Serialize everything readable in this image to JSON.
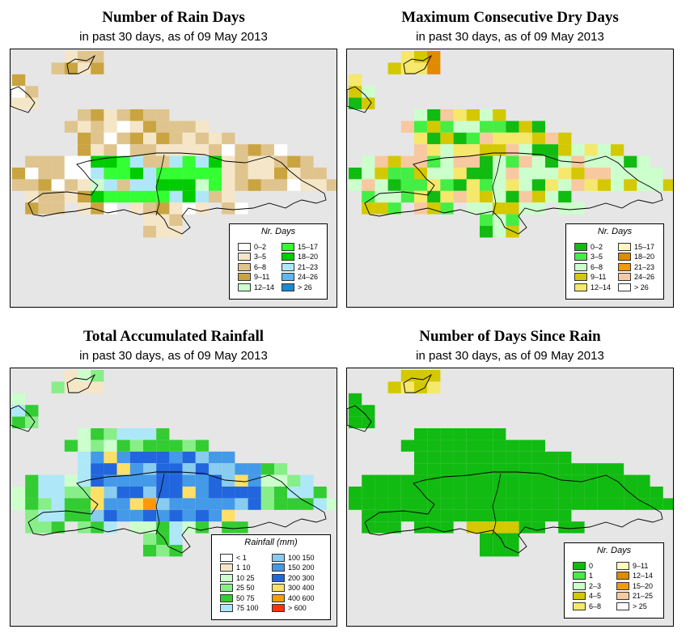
{
  "panels": [
    {
      "title": "Number of Rain Days",
      "subtitle": "in past 30 days, as of  09 May 2013",
      "legend": {
        "title": "Nr. Days",
        "items": [
          {
            "label": "0–2",
            "color": "#ffffff"
          },
          {
            "label": "3–5",
            "color": "#f5e6c8"
          },
          {
            "label": "6–8",
            "color": "#dfc48e"
          },
          {
            "label": "9–11",
            "color": "#c9a440"
          },
          {
            "label": "12–14",
            "color": "#ccffcc"
          },
          {
            "label": "15–17",
            "color": "#33ff33"
          },
          {
            "label": "18–20",
            "color": "#00cc00"
          },
          {
            "label": "21–23",
            "color": "#aee8f8"
          },
          {
            "label": "24–26",
            "color": "#5cb8f0"
          },
          {
            "label": "> 26",
            "color": "#1e88d0"
          }
        ]
      }
    },
    {
      "title": "Maximum Consecutive Dry Days",
      "subtitle": "in past 30 days, as of  09 May 2013",
      "legend": {
        "title": "Nr. Days",
        "items": [
          {
            "label": "0–2",
            "color": "#11bb11"
          },
          {
            "label": "3–5",
            "color": "#44ee44"
          },
          {
            "label": "6–8",
            "color": "#ccffcc"
          },
          {
            "label": "9–11",
            "color": "#d4c800"
          },
          {
            "label": "12–14",
            "color": "#f5e86a"
          },
          {
            "label": "15–17",
            "color": "#fff8c0"
          },
          {
            "label": "18–20",
            "color": "#e08a00"
          },
          {
            "label": "21–23",
            "color": "#f09a10"
          },
          {
            "label": "24–26",
            "color": "#f8c8a0"
          },
          {
            "label": "> 26",
            "color": "#ffffff"
          }
        ]
      }
    },
    {
      "title": "Total Accumulated Rainfall",
      "subtitle": "in past 30 days, as of  09 May 2013",
      "legend": {
        "title": "Rainfall (mm)",
        "items": [
          {
            "label": "< 1",
            "color": "#ffffff"
          },
          {
            "label": "1   10",
            "color": "#f5e6c8"
          },
          {
            "label": "10   25",
            "color": "#ccffcc"
          },
          {
            "label": "25   50",
            "color": "#88ee88"
          },
          {
            "label": "50   75",
            "color": "#33cc33"
          },
          {
            "label": "75   100",
            "color": "#aee8f8"
          },
          {
            "label": "100   150",
            "color": "#88ccf0"
          },
          {
            "label": "150   200",
            "color": "#4499e8"
          },
          {
            "label": "200   300",
            "color": "#2266dd"
          },
          {
            "label": "300   400",
            "color": "#ffe066"
          },
          {
            "label": "400   600",
            "color": "#ff9900"
          },
          {
            "label": "> 600",
            "color": "#ff3300"
          }
        ]
      }
    },
    {
      "title": "Number of Days Since Rain",
      "subtitle": "in past 30 days, as of  09 May 2013",
      "legend": {
        "title": "Nr. Days",
        "items": [
          {
            "label": "0",
            "color": "#11bb11"
          },
          {
            "label": "1",
            "color": "#44ee44"
          },
          {
            "label": "2–3",
            "color": "#ccffcc"
          },
          {
            "label": "4–5",
            "color": "#d4c800"
          },
          {
            "label": "6–8",
            "color": "#f5e86a"
          },
          {
            "label": "9–11",
            "color": "#fff8c0"
          },
          {
            "label": "12–14",
            "color": "#e08a00"
          },
          {
            "label": "15–20",
            "color": "#f09a10"
          },
          {
            "label": "21–25",
            "color": "#f8c8a0"
          },
          {
            "label": "> 25",
            "color": "#ffffff"
          }
        ]
      }
    }
  ]
}
